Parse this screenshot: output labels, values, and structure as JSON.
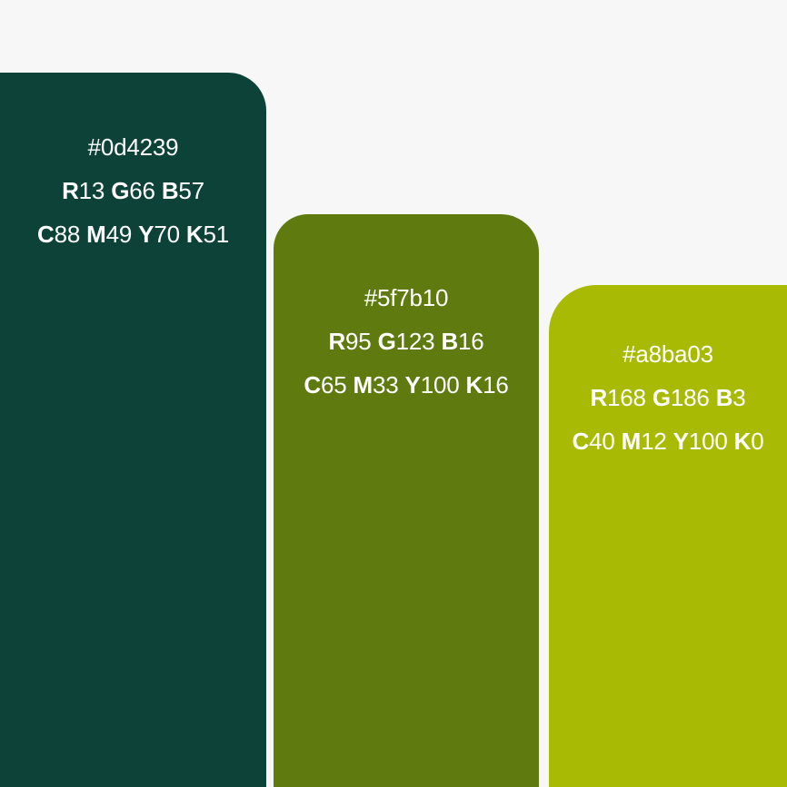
{
  "swatches": [
    {
      "hex": "#0d4239",
      "color": "#0d4239",
      "r": "13",
      "g": "66",
      "b": "57",
      "c": "88",
      "m": "49",
      "y": "70",
      "k": "51"
    },
    {
      "hex": "#5f7b10",
      "color": "#5f7b10",
      "r": "95",
      "g": "123",
      "b": "16",
      "c": "65",
      "m": "33",
      "y": "100",
      "k": "16"
    },
    {
      "hex": "#a8ba03",
      "color": "#a8ba03",
      "r": "168",
      "g": "186",
      "b": "3",
      "c": "40",
      "m": "12",
      "y": "100",
      "k": "0"
    }
  ],
  "labels": {
    "r": "R",
    "g": "G",
    "b": "B",
    "c": "C",
    "m": "M",
    "y": "Y",
    "k": "K"
  }
}
